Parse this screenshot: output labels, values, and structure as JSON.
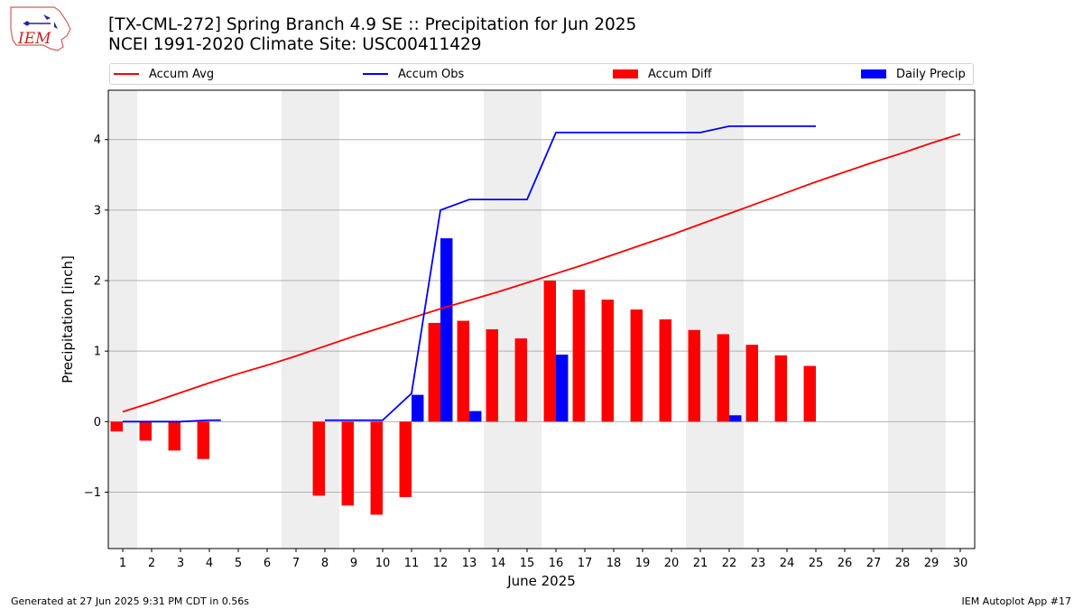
{
  "colors": {
    "accum_avg": "#ff0000",
    "accum_obs": "#0000ff",
    "accum_diff": "#ff0000",
    "daily_precip": "#0000ff",
    "weekend_band": "#eeeeee",
    "grid": "#b0b0b0"
  },
  "header": {
    "title_line1": "[TX-CML-272] Spring Branch 4.9 SE :: Precipitation for Jun 2025",
    "title_line2": "NCEI 1991-2020 Climate Site: USC00411429",
    "logo_text": "IEM"
  },
  "footer": {
    "generated": "Generated at 27 Jun 2025 9:31 PM CDT in 0.56s",
    "app": "IEM Autoplot App #17"
  },
  "chart_data": {
    "type": "bar",
    "xlabel": "June 2025",
    "ylabel": "Precipitation [inch]",
    "xlim": [
      0.5,
      30.5
    ],
    "ylim": [
      -1.8,
      4.7
    ],
    "yticks": [
      -1,
      0,
      1,
      2,
      3,
      4
    ],
    "ytick_labels": [
      "−1",
      "0",
      "1",
      "2",
      "3",
      "4"
    ],
    "xticks": [
      "1",
      "2",
      "3",
      "4",
      "5",
      "6",
      "7",
      "8",
      "9",
      "10",
      "11",
      "12",
      "13",
      "14",
      "15",
      "16",
      "17",
      "18",
      "19",
      "20",
      "21",
      "22",
      "23",
      "24",
      "25",
      "26",
      "27",
      "28",
      "29",
      "30"
    ],
    "grid": "horizontal",
    "legend_placement": "top",
    "weekend_spans": [
      [
        0.5,
        1.5
      ],
      [
        6.5,
        8.5
      ],
      [
        13.5,
        15.5
      ],
      [
        20.5,
        22.5
      ],
      [
        27.5,
        29.5
      ]
    ],
    "series": [
      {
        "name": "Accum Avg",
        "kind": "line",
        "days": [
          1,
          2,
          3,
          4,
          5,
          6,
          7,
          8,
          9,
          10,
          11,
          12,
          13,
          14,
          15,
          16,
          17,
          18,
          19,
          20,
          21,
          22,
          23,
          24,
          25,
          26,
          27,
          28,
          29,
          30
        ],
        "values": [
          0.14,
          0.27,
          0.41,
          0.55,
          0.68,
          0.8,
          0.93,
          1.07,
          1.21,
          1.34,
          1.47,
          1.6,
          1.72,
          1.84,
          1.97,
          2.1,
          2.23,
          2.37,
          2.51,
          2.65,
          2.8,
          2.95,
          3.1,
          3.25,
          3.4,
          3.54,
          3.68,
          3.81,
          3.95,
          4.08
        ]
      },
      {
        "name": "Accum Obs",
        "kind": "line",
        "segments": [
          {
            "days": [
              1,
              2,
              3,
              4,
              4.4
            ],
            "values": [
              0.0,
              0.0,
              0.0,
              0.02,
              0.02
            ]
          },
          {
            "days": [
              8,
              9,
              10,
              11,
              12,
              13,
              14,
              15,
              16,
              17,
              18,
              19,
              20,
              21,
              22,
              23,
              24,
              25
            ],
            "values": [
              0.02,
              0.02,
              0.02,
              0.4,
              3.0,
              3.15,
              3.15,
              3.15,
              4.1,
              4.1,
              4.1,
              4.1,
              4.1,
              4.1,
              4.19,
              4.19,
              4.19,
              4.19
            ]
          }
        ]
      },
      {
        "name": "Accum Diff",
        "kind": "bar",
        "days": [
          1,
          2,
          3,
          4,
          8,
          9,
          10,
          11,
          12,
          13,
          14,
          15,
          16,
          17,
          18,
          19,
          20,
          21,
          22,
          23,
          24,
          25
        ],
        "values": [
          -0.14,
          -0.27,
          -0.41,
          -0.53,
          -1.05,
          -1.19,
          -1.32,
          -1.07,
          1.4,
          1.43,
          1.31,
          1.18,
          2.0,
          1.87,
          1.73,
          1.59,
          1.45,
          1.3,
          1.24,
          1.09,
          0.94,
          0.79
        ]
      },
      {
        "name": "Daily Precip",
        "kind": "bar",
        "days": [
          11,
          12,
          13,
          16,
          22
        ],
        "values": [
          0.38,
          2.6,
          0.15,
          0.95,
          0.09
        ]
      }
    ]
  }
}
